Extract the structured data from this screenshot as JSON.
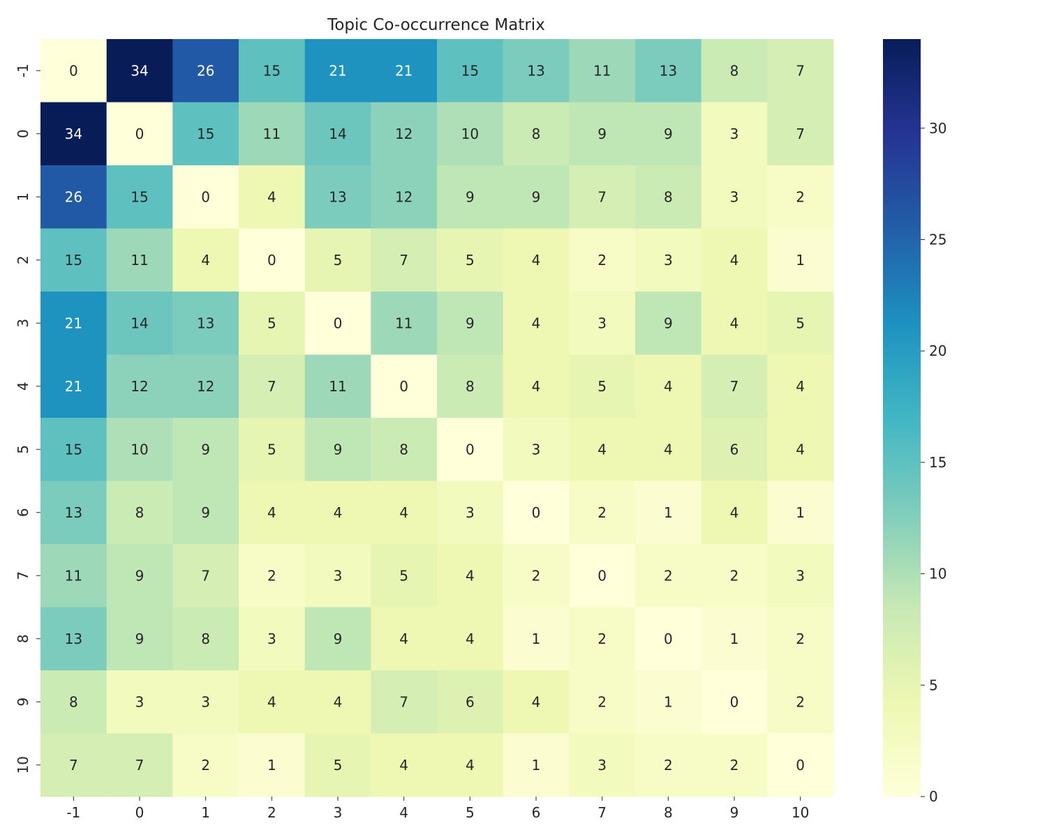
{
  "chart_data": {
    "type": "heatmap",
    "title": "Topic Co-occurrence Matrix",
    "xlabel": "",
    "ylabel": "",
    "x_categories": [
      "-1",
      "0",
      "1",
      "2",
      "3",
      "4",
      "5",
      "6",
      "7",
      "8",
      "9",
      "10"
    ],
    "y_categories": [
      "-1",
      "0",
      "1",
      "2",
      "3",
      "4",
      "5",
      "6",
      "7",
      "8",
      "9",
      "10"
    ],
    "values": [
      [
        0,
        34,
        26,
        15,
        21,
        21,
        15,
        13,
        11,
        13,
        8,
        7
      ],
      [
        34,
        0,
        15,
        11,
        14,
        12,
        10,
        8,
        9,
        9,
        3,
        7
      ],
      [
        26,
        15,
        0,
        4,
        13,
        12,
        9,
        9,
        7,
        8,
        3,
        2
      ],
      [
        15,
        11,
        4,
        0,
        5,
        7,
        5,
        4,
        2,
        3,
        4,
        1
      ],
      [
        21,
        14,
        13,
        5,
        0,
        11,
        9,
        4,
        3,
        9,
        4,
        5
      ],
      [
        21,
        12,
        12,
        7,
        11,
        0,
        8,
        4,
        5,
        4,
        7,
        4
      ],
      [
        15,
        10,
        9,
        5,
        9,
        8,
        0,
        3,
        4,
        4,
        6,
        4
      ],
      [
        13,
        8,
        9,
        4,
        4,
        4,
        3,
        0,
        2,
        1,
        4,
        1
      ],
      [
        11,
        9,
        7,
        2,
        3,
        5,
        4,
        2,
        0,
        2,
        2,
        3
      ],
      [
        13,
        9,
        8,
        3,
        9,
        4,
        4,
        1,
        2,
        0,
        1,
        2
      ],
      [
        8,
        3,
        3,
        4,
        4,
        7,
        6,
        4,
        2,
        1,
        0,
        2
      ],
      [
        7,
        7,
        2,
        1,
        5,
        4,
        4,
        1,
        3,
        2,
        2,
        0
      ]
    ],
    "colormap": "YlGnBu",
    "value_range": [
      0,
      34
    ],
    "colorbar_ticks": [
      0,
      5,
      10,
      15,
      20,
      25,
      30
    ],
    "colorbar_tick_labels": [
      "0",
      "5",
      "10",
      "15",
      "20",
      "25",
      "30"
    ],
    "annotated": true,
    "grid": false,
    "legend": "colorbar-right"
  }
}
